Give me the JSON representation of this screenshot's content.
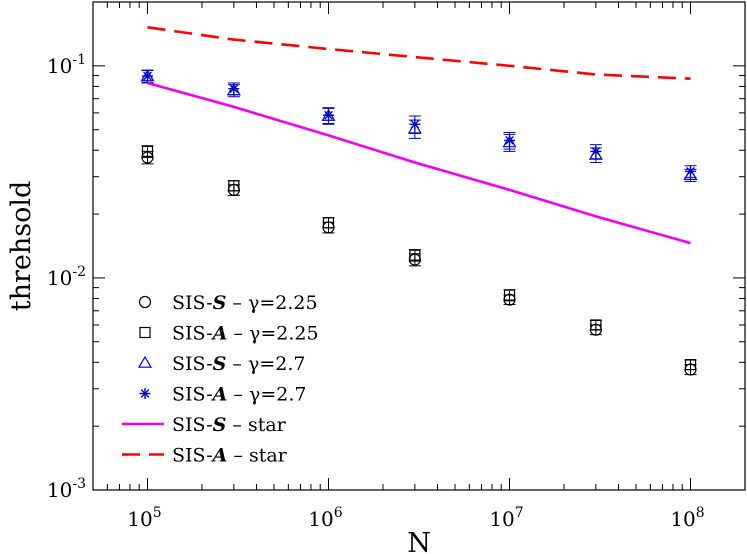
{
  "chart_data": {
    "type": "scatter",
    "title": "",
    "xlabel": "N",
    "ylabel": "threhsold",
    "xscale": "log",
    "yscale": "log",
    "xlim": [
      50000,
      200000000
    ],
    "ylim": [
      0.001,
      0.2
    ],
    "x_ticks": [
      {
        "value": 100000,
        "base": "10",
        "exp": "5"
      },
      {
        "value": 1000000,
        "base": "10",
        "exp": "6"
      },
      {
        "value": 10000000,
        "base": "10",
        "exp": "7"
      },
      {
        "value": 100000000,
        "base": "10",
        "exp": "8"
      }
    ],
    "y_ticks": [
      {
        "value": 0.001,
        "base": "10",
        "exp": "-3"
      },
      {
        "value": 0.01,
        "base": "10",
        "exp": "-2"
      },
      {
        "value": 0.1,
        "base": "10",
        "exp": "-1"
      }
    ],
    "legend_position": "bottom-left",
    "series": [
      {
        "name": "SIS-S – γ=2.25",
        "legend_prefix": "SIS-",
        "legend_symbol": "S",
        "legend_suffix": " – γ=2.25",
        "marker": "circle",
        "color": "#000000",
        "points": [
          {
            "x": 100000,
            "y": 0.037,
            "err": 0.0025
          },
          {
            "x": 300000,
            "y": 0.026,
            "err": 0.0015
          },
          {
            "x": 1000000,
            "y": 0.0173,
            "err": 0.001
          },
          {
            "x": 3000000,
            "y": 0.0122,
            "err": 0.0008
          },
          {
            "x": 10000000,
            "y": 0.0079,
            "err": 0.0004
          },
          {
            "x": 30000000,
            "y": 0.0057,
            "err": 0.0003
          },
          {
            "x": 100000000,
            "y": 0.0037,
            "err": 0.0002
          }
        ]
      },
      {
        "name": "SIS-A – γ=2.25",
        "legend_prefix": "SIS-",
        "legend_symbol": "A",
        "legend_suffix": " – γ=2.25",
        "marker": "square",
        "color": "#000000",
        "points": [
          {
            "x": 100000,
            "y": 0.0395,
            "err": 0.0025
          },
          {
            "x": 300000,
            "y": 0.0272,
            "err": 0.0015
          },
          {
            "x": 1000000,
            "y": 0.0182,
            "err": 0.001
          },
          {
            "x": 3000000,
            "y": 0.0128,
            "err": 0.0008
          },
          {
            "x": 10000000,
            "y": 0.0083,
            "err": 0.0005
          },
          {
            "x": 30000000,
            "y": 0.006,
            "err": 0.0003
          },
          {
            "x": 100000000,
            "y": 0.0039,
            "err": 0.0002
          }
        ]
      },
      {
        "name": "SIS-S – γ=2.7",
        "legend_prefix": "SIS-",
        "legend_symbol": "S",
        "legend_suffix": " – γ=2.7",
        "marker": "triangle",
        "color": "#0000cc",
        "points": [
          {
            "x": 100000,
            "y": 0.089,
            "err": 0.006
          },
          {
            "x": 300000,
            "y": 0.0765,
            "err": 0.005
          },
          {
            "x": 1000000,
            "y": 0.058,
            "err": 0.005
          },
          {
            "x": 3000000,
            "y": 0.0505,
            "err": 0.005
          },
          {
            "x": 10000000,
            "y": 0.0435,
            "err": 0.004
          },
          {
            "x": 30000000,
            "y": 0.038,
            "err": 0.003
          },
          {
            "x": 100000000,
            "y": 0.0305,
            "err": 0.002
          }
        ]
      },
      {
        "name": "SIS-A – γ=2.7",
        "legend_prefix": "SIS-",
        "legend_symbol": "A",
        "legend_suffix": " – γ=2.7",
        "marker": "star",
        "color": "#0000cc",
        "points": [
          {
            "x": 100000,
            "y": 0.0895,
            "err": 0.006
          },
          {
            "x": 300000,
            "y": 0.078,
            "err": 0.005
          },
          {
            "x": 1000000,
            "y": 0.0585,
            "err": 0.005
          },
          {
            "x": 3000000,
            "y": 0.053,
            "err": 0.005
          },
          {
            "x": 10000000,
            "y": 0.0445,
            "err": 0.004
          },
          {
            "x": 30000000,
            "y": 0.0395,
            "err": 0.003
          },
          {
            "x": 100000000,
            "y": 0.0318,
            "err": 0.002
          }
        ]
      },
      {
        "name": "SIS-S – star",
        "legend_prefix": "SIS-",
        "legend_symbol": "S",
        "legend_suffix": " – star",
        "marker": "solid-line",
        "color": "#ee00ee",
        "points": [
          {
            "x": 100000,
            "y": 0.083
          },
          {
            "x": 300000,
            "y": 0.064
          },
          {
            "x": 1000000,
            "y": 0.047
          },
          {
            "x": 3000000,
            "y": 0.035
          },
          {
            "x": 10000000,
            "y": 0.026
          },
          {
            "x": 30000000,
            "y": 0.0195
          },
          {
            "x": 100000000,
            "y": 0.0146
          }
        ]
      },
      {
        "name": "SIS-A – star",
        "legend_prefix": "SIS-",
        "legend_symbol": "A",
        "legend_suffix": " – star",
        "marker": "dashed-line",
        "color": "#ff0000",
        "points": [
          {
            "x": 100000,
            "y": 0.152
          },
          {
            "x": 300000,
            "y": 0.133
          },
          {
            "x": 1000000,
            "y": 0.12
          },
          {
            "x": 3000000,
            "y": 0.11
          },
          {
            "x": 10000000,
            "y": 0.1
          },
          {
            "x": 30000000,
            "y": 0.091
          },
          {
            "x": 100000000,
            "y": 0.087
          }
        ]
      }
    ]
  }
}
